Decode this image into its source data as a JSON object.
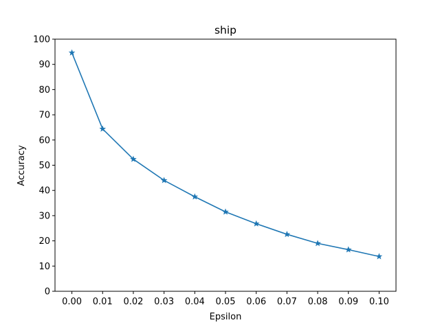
{
  "chart_data": {
    "type": "line",
    "title": "ship",
    "xlabel": "Epsilon",
    "ylabel": "Accuracy",
    "x": [
      0.0,
      0.01,
      0.02,
      0.03,
      0.04,
      0.05,
      0.06,
      0.07,
      0.08,
      0.09,
      0.1
    ],
    "x_tick_labels": [
      "0.00",
      "0.01",
      "0.02",
      "0.03",
      "0.04",
      "0.05",
      "0.06",
      "0.07",
      "0.08",
      "0.09",
      "0.10"
    ],
    "y_ticks": [
      0,
      10,
      20,
      30,
      40,
      50,
      60,
      70,
      80,
      90,
      100
    ],
    "y_tick_labels": [
      "0",
      "10",
      "20",
      "30",
      "40",
      "50",
      "60",
      "70",
      "80",
      "90",
      "100"
    ],
    "xlim": [
      -0.0055,
      0.1055
    ],
    "ylim": [
      0,
      100
    ],
    "series": [
      {
        "values": [
          94.6,
          64.4,
          52.4,
          44.0,
          37.5,
          31.5,
          26.8,
          22.6,
          19.0,
          16.5,
          13.8
        ],
        "color": "#1f77b4",
        "marker": "star"
      }
    ],
    "grid": false,
    "legend": "none"
  }
}
